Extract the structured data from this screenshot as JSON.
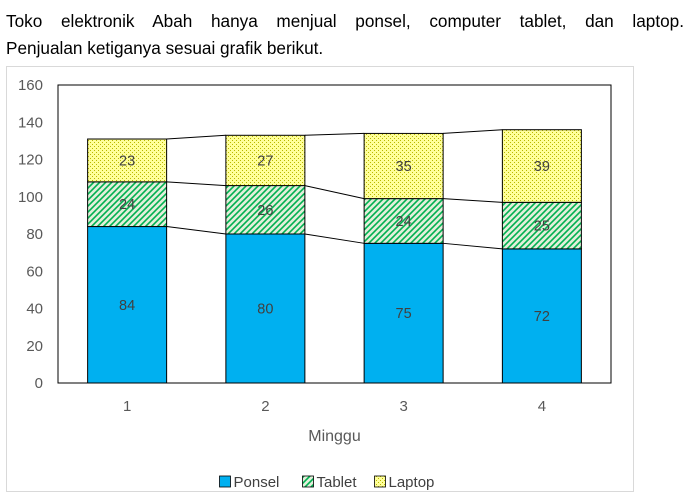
{
  "question": {
    "line1": "Toko elektronik Abah hanya menjual ponsel, computer tablet, dan laptop.",
    "line2": "Penjualan ketiganya sesuai grafik berikut."
  },
  "colors": {
    "ponsel": "#00b0f0",
    "tablet_bg": "#e2efda",
    "tablet_hatch": "#00b050",
    "laptop_bg": "#ffff99",
    "laptop_dot": "#b8b800"
  },
  "chart_data": {
    "type": "bar",
    "stacked": true,
    "categories": [
      "1",
      "2",
      "3",
      "4"
    ],
    "series": [
      {
        "name": "Ponsel",
        "values": [
          84,
          80,
          75,
          72
        ]
      },
      {
        "name": "Tablet",
        "values": [
          24,
          26,
          24,
          25
        ]
      },
      {
        "name": "Laptop",
        "values": [
          23,
          27,
          35,
          39
        ]
      }
    ],
    "title": "",
    "xlabel": "Minggu",
    "ylabel": "",
    "ylim": [
      0,
      160
    ],
    "yticks": [
      "0",
      "20",
      "40",
      "60",
      "80",
      "100",
      "120",
      "140",
      "160"
    ],
    "grid": false,
    "series_lines": true,
    "legend": "bottom"
  }
}
